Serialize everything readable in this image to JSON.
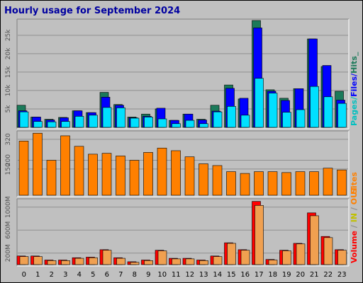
{
  "chart_data": {
    "type": "bar",
    "title": "Hourly usage for September 2024",
    "categories": [
      "0",
      "1",
      "2",
      "3",
      "4",
      "5",
      "6",
      "7",
      "8",
      "9",
      "10",
      "11",
      "12",
      "13",
      "14",
      "15",
      "16",
      "17",
      "18",
      "19",
      "20",
      "21",
      "22",
      "23"
    ],
    "panels": {
      "hits_pages_files": {
        "right_label": [
          "Pages",
          "Files",
          "Hits"
        ],
        "yticks": [
          "5k",
          "10k",
          "15k",
          "20k",
          "25k"
        ],
        "ylim": [
          0,
          29000
        ],
        "series": [
          {
            "name": "Hits",
            "color": "#1b7a5a",
            "values": [
              6000,
              2800,
              2200,
              2700,
              4500,
              4000,
              9500,
              6200,
              2800,
              3600,
              5000,
              1900,
              3600,
              2200,
              6000,
              11500,
              7700,
              29000,
              10200,
              7900,
              10500,
              24000,
              16500,
              9800
            ]
          },
          {
            "name": "Files",
            "color": "#0000ff",
            "values": [
              4500,
              2800,
              2000,
              2600,
              4500,
              4000,
              8200,
              6000,
              2600,
              3000,
              5200,
              1900,
              3600,
              2000,
              4400,
              10600,
              7900,
              27000,
              9800,
              7300,
              10500,
              24000,
              16800,
              7400
            ]
          },
          {
            "name": "Pages",
            "color": "#00e0ff",
            "values": [
              4200,
              1600,
              1500,
              1600,
              3000,
              3300,
              5400,
              5300,
              2500,
              2800,
              2300,
              1000,
              1900,
              1000,
              4200,
              5700,
              3300,
              13300,
              9300,
              4100,
              4800,
              11100,
              8300,
              6500
            ]
          }
        ]
      },
      "sites": {
        "right_label": [
          "Sites"
        ],
        "yticks": [
          "150",
          "200",
          "320"
        ],
        "ylim": [
          0,
          360
        ],
        "series": [
          {
            "name": "Sites",
            "color": "#ff8000",
            "values": [
              310,
              355,
              200,
              340,
              280,
              235,
              240,
              225,
              200,
              245,
              270,
              255,
              220,
              180,
              170,
              135,
              125,
              135,
              135,
              130,
              135,
              135,
              155,
              145
            ]
          }
        ]
      },
      "volume": {
        "right_label": [
          "Volume",
          "/",
          "IN",
          "/",
          "OUT"
        ],
        "yticks": [
          "200M",
          "600M",
          "1000M"
        ],
        "ylim": [
          0,
          1120
        ],
        "series": [
          {
            "name": "Volume",
            "color": "#ff0000",
            "values": [
              150,
              150,
              80,
              80,
              120,
              130,
              260,
              120,
              50,
              80,
              250,
              110,
              110,
              80,
              150,
              380,
              260,
              1100,
              90,
              250,
              370,
              900,
              490,
              260
            ]
          },
          {
            "name": "IN",
            "color": "#ffff00",
            "values": [
              0,
              0,
              0,
              0,
              0,
              0,
              0,
              0,
              0,
              0,
              0,
              0,
              0,
              0,
              0,
              0,
              0,
              0,
              0,
              0,
              0,
              0,
              0,
              0
            ]
          },
          {
            "name": "OUT",
            "color": "#f0a050",
            "values": [
              140,
              140,
              70,
              70,
              110,
              120,
              250,
              110,
              40,
              70,
              240,
              100,
              100,
              70,
              140,
              370,
              250,
              1030,
              80,
              240,
              360,
              850,
              470,
              250
            ]
          }
        ]
      }
    }
  }
}
